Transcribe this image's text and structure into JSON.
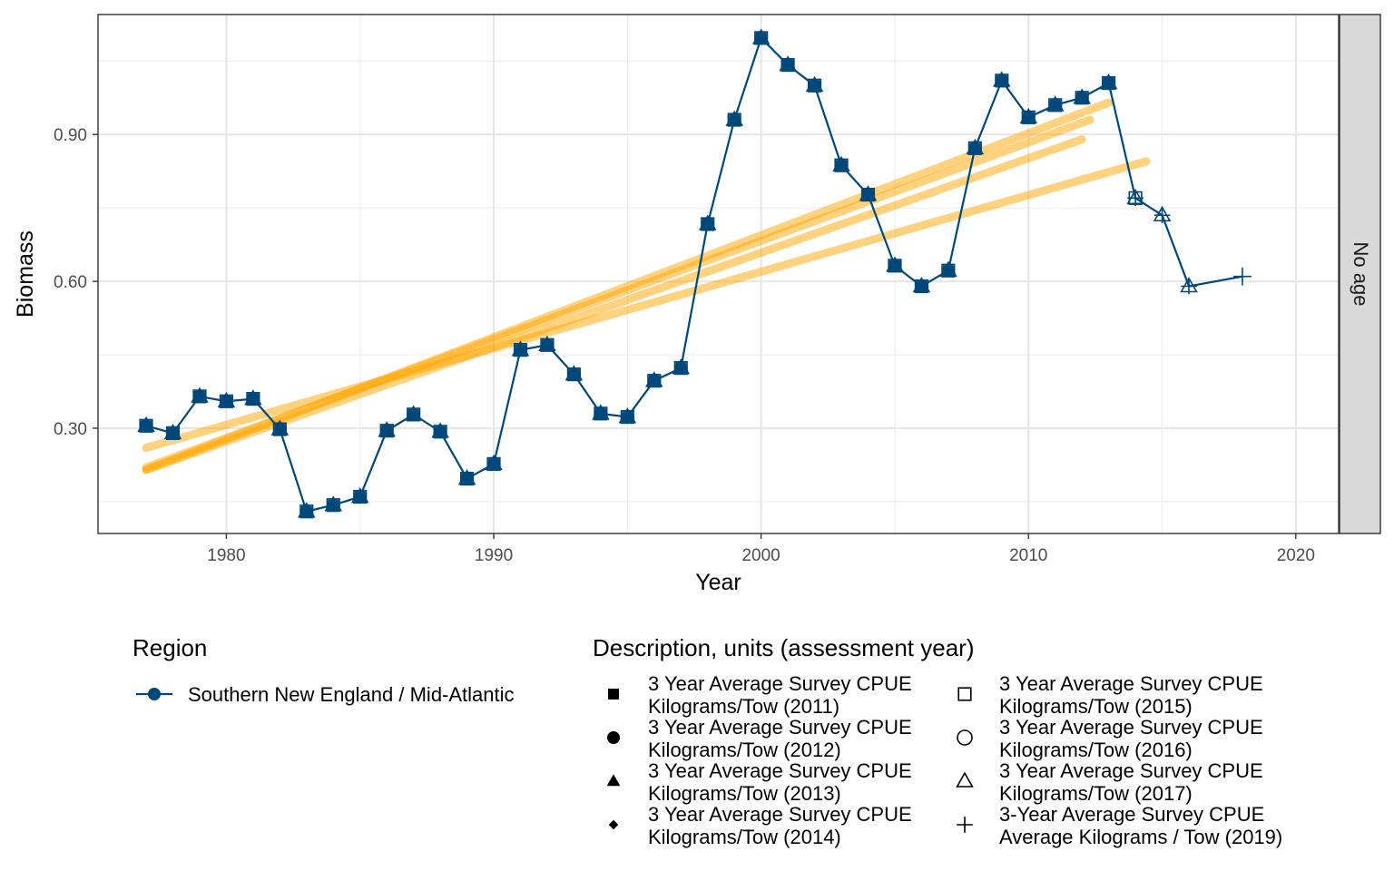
{
  "chart_data": {
    "type": "line",
    "xlabel": "Year",
    "ylabel": "Biomass",
    "facet_label": "No age",
    "xlim": [
      1975.2,
      2021.6
    ],
    "ylim": [
      0.085,
      1.145
    ],
    "x_ticks": [
      1980,
      1990,
      2000,
      2010,
      2020
    ],
    "x_tick_labels": [
      "1980",
      "1990",
      "2000",
      "2010",
      "2020"
    ],
    "y_ticks": [
      0.3,
      0.6,
      0.9
    ],
    "y_tick_labels": [
      "0.30",
      "0.60",
      "0.90"
    ],
    "grid": true,
    "series_color": "#00477A",
    "trend_color": "#FFA500",
    "series": [
      {
        "name": "Southern New England / Mid-Atlantic",
        "x": [
          1977,
          1978,
          1979,
          1980,
          1981,
          1982,
          1983,
          1984,
          1985,
          1986,
          1987,
          1988,
          1989,
          1990,
          1991,
          1992,
          1993,
          1994,
          1995,
          1996,
          1997,
          1998,
          1999,
          2000,
          2001,
          2002,
          2003,
          2004,
          2005,
          2006,
          2007,
          2008,
          2009,
          2010,
          2011,
          2012,
          2013,
          2014,
          2015,
          2016,
          2018
        ],
        "y": [
          0.305,
          0.29,
          0.365,
          0.355,
          0.36,
          0.298,
          0.13,
          0.143,
          0.16,
          0.295,
          0.328,
          0.293,
          0.197,
          0.227,
          0.46,
          0.47,
          0.41,
          0.33,
          0.323,
          0.397,
          0.423,
          0.717,
          0.93,
          1.097,
          1.042,
          1.0,
          0.837,
          0.777,
          0.632,
          0.59,
          0.622,
          0.872,
          1.01,
          0.935,
          0.96,
          0.975,
          1.005,
          0.77,
          0.735,
          0.59,
          0.61
        ]
      }
    ],
    "trend_lines": [
      {
        "x": [
          1977,
          2012
        ],
        "y": [
          0.215,
          0.89
        ]
      },
      {
        "x": [
          1977,
          2012.3
        ],
        "y": [
          0.22,
          0.93
        ]
      },
      {
        "x": [
          1977,
          2013
        ],
        "y": [
          0.215,
          0.965
        ]
      },
      {
        "x": [
          1977,
          2014.4
        ],
        "y": [
          0.26,
          0.845
        ]
      }
    ],
    "legend": {
      "region_title": "Region",
      "region_entries": [
        "Southern New England / Mid-Atlantic"
      ],
      "description_title": "Description, units (assessment year)",
      "description_entries": [
        {
          "shape": "filled-square",
          "line1": "3 Year Average Survey CPUE",
          "line2": "Kilograms/Tow (2011)"
        },
        {
          "shape": "filled-circle",
          "line1": "3 Year Average Survey CPUE",
          "line2": "Kilograms/Tow (2012)"
        },
        {
          "shape": "filled-triangle",
          "line1": "3 Year Average Survey CPUE",
          "line2": "Kilograms/Tow (2013)"
        },
        {
          "shape": "filled-diamond",
          "line1": "3 Year Average Survey CPUE",
          "line2": "Kilograms/Tow (2014)"
        },
        {
          "shape": "open-square",
          "line1": "3 Year Average Survey CPUE",
          "line2": "Kilograms/Tow (2015)"
        },
        {
          "shape": "open-circle",
          "line1": "3 Year Average Survey CPUE",
          "line2": "Kilograms/Tow (2016)"
        },
        {
          "shape": "open-triangle",
          "line1": "3 Year Average Survey CPUE",
          "line2": "Kilograms/Tow (2017)"
        },
        {
          "shape": "plus",
          "line1": "3-Year Average Survey CPUE",
          "line2": "Average Kilograms / Tow (2019)"
        }
      ]
    }
  }
}
